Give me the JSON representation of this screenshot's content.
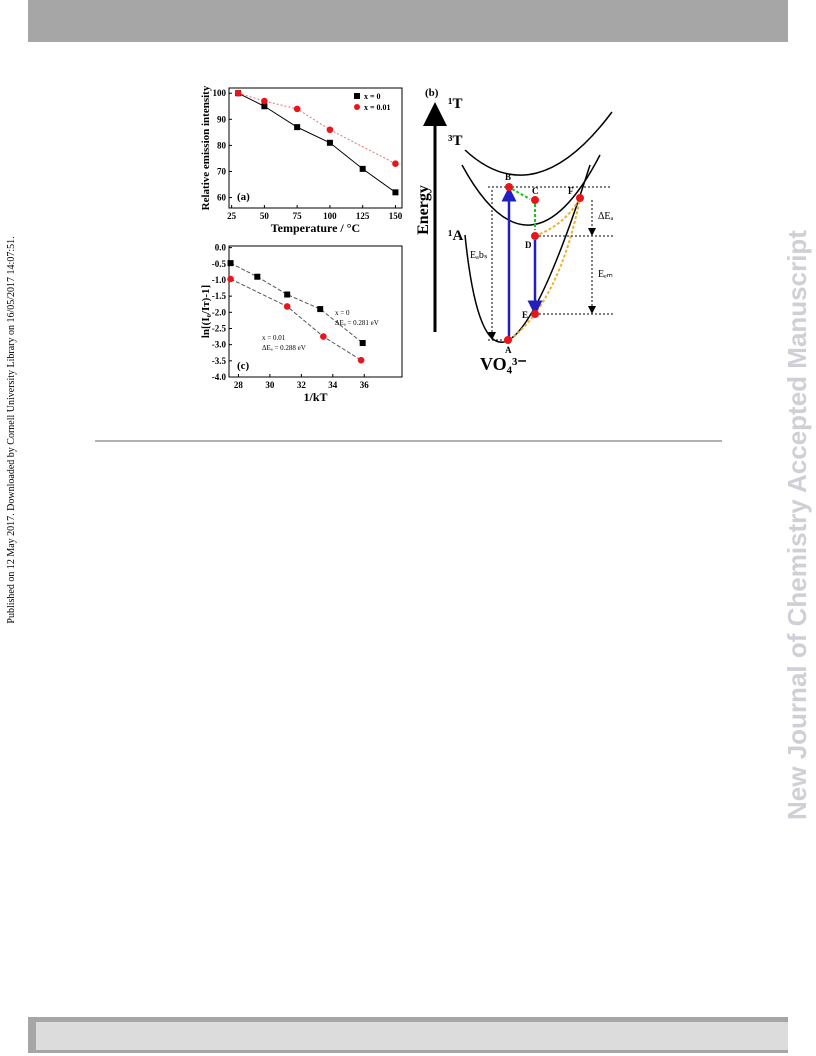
{
  "sidebar": "Published on 12 May 2017. Downloaded by Cornell University Library on 16/05/2017 14:07:51.",
  "watermark": "New Journal of Chemistry Accepted Manuscript",
  "chart_data": [
    {
      "type": "scatter",
      "panel_label": "(a)",
      "x_label": "Temperature / °C",
      "y_label": "Relative emission intensity",
      "xlim": [
        23,
        155
      ],
      "xticks": [
        25,
        50,
        75,
        100,
        125,
        150
      ],
      "ylim": [
        56,
        102
      ],
      "yticks": [
        60,
        70,
        80,
        90,
        100
      ],
      "legend": "upper right",
      "series": [
        {
          "name": "x = 0",
          "color": "#000000",
          "marker": "square",
          "line_color": "#000000",
          "line_style": "solid",
          "x": [
            30,
            50,
            75,
            100,
            125,
            150
          ],
          "values": [
            100,
            95,
            87,
            81,
            71,
            62
          ]
        },
        {
          "name": "x = 0.01",
          "color": "#e8151b",
          "marker": "circle",
          "line_color": "#e87070",
          "line_style": "dotted",
          "x": [
            30,
            50,
            75,
            100,
            150
          ],
          "values": [
            100,
            97,
            94,
            86,
            73
          ]
        }
      ]
    },
    {
      "type": "scatter",
      "panel_label": "(c)",
      "x_label": "1/kT",
      "y_label": "ln[(I₀/Iᴛ)-1]",
      "xlim": [
        27.4,
        38.4
      ],
      "xticks": [
        28,
        30,
        32,
        34,
        36
      ],
      "ylim": [
        -4,
        0.05
      ],
      "yticks": [
        {
          "value": 0,
          "label": "0.0"
        },
        -0.5,
        {
          "value": -1,
          "label": "-1.0"
        },
        -1.5,
        {
          "value": -2,
          "label": "-2.0"
        },
        -2.5,
        {
          "value": -3,
          "label": "-3.0"
        },
        -3.5,
        {
          "value": -4,
          "label": "-4.0"
        }
      ],
      "annotations": [
        "x = 0",
        "ΔEₐ = 0.281 eV",
        "x = 0.01",
        "ΔEₐ = 0.288 eV"
      ],
      "series": [
        {
          "color": "#000000",
          "marker": "square",
          "line_color": "#555555",
          "line_style": "dashed",
          "x": [
            27.5,
            29.2,
            31.1,
            33.2,
            35.9
          ],
          "values": [
            -0.48,
            -0.9,
            -1.45,
            -1.9,
            -2.95
          ]
        },
        {
          "color": "#e8151b",
          "marker": "circle",
          "line_color": "#555555",
          "line_style": "dashed",
          "x": [
            27.5,
            31.1,
            33.4,
            35.8
          ],
          "values": [
            -0.97,
            -1.82,
            -2.75,
            -3.48
          ]
        }
      ]
    }
  ],
  "diagram": {
    "panel_label": "(b)",
    "axis_label": "Energy",
    "states": [
      "¹T",
      "³T",
      "¹A"
    ],
    "points": [
      "A",
      "B",
      "C",
      "D",
      "E",
      "F"
    ],
    "e_abs": "Eₐbₛ",
    "e_em": "Eₑₘ",
    "delta_e": "ΔEₐ",
    "ion": "VO₄³⁻"
  }
}
